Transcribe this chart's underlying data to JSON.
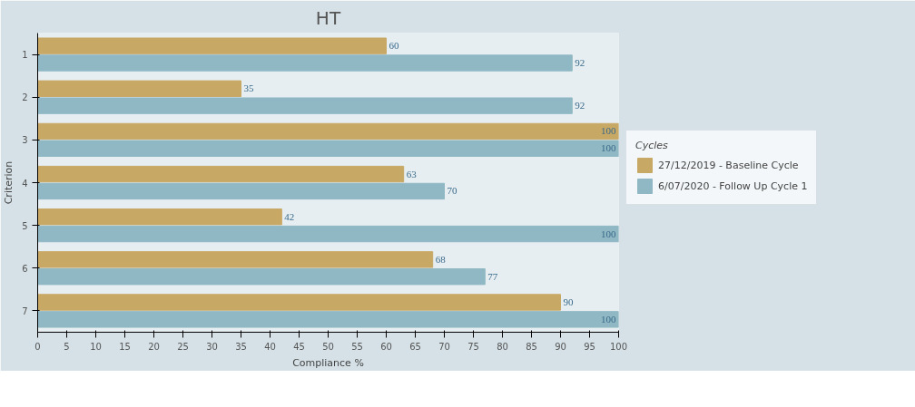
{
  "chart_data": {
    "type": "bar",
    "orientation": "horizontal",
    "title": "HT",
    "xlabel": "Compliance %",
    "ylabel": "Criterion",
    "legend_title": "Cycles",
    "legend": "right",
    "data_labels": true,
    "categories": [
      "1",
      "2",
      "3",
      "4",
      "5",
      "6",
      "7"
    ],
    "xlim": [
      0,
      100
    ],
    "xticks": [
      0,
      5,
      10,
      15,
      20,
      25,
      30,
      35,
      40,
      45,
      50,
      55,
      60,
      65,
      70,
      75,
      80,
      85,
      90,
      95,
      100
    ],
    "series": [
      {
        "name": "27/12/2019 - Baseline Cycle",
        "color": "#c8a865",
        "values": [
          60,
          35,
          100,
          63,
          42,
          68,
          90
        ]
      },
      {
        "name": "6/07/2020 - Follow Up Cycle 1",
        "color": "#8fb8c4",
        "values": [
          92,
          92,
          100,
          70,
          100,
          77,
          100
        ]
      }
    ]
  }
}
